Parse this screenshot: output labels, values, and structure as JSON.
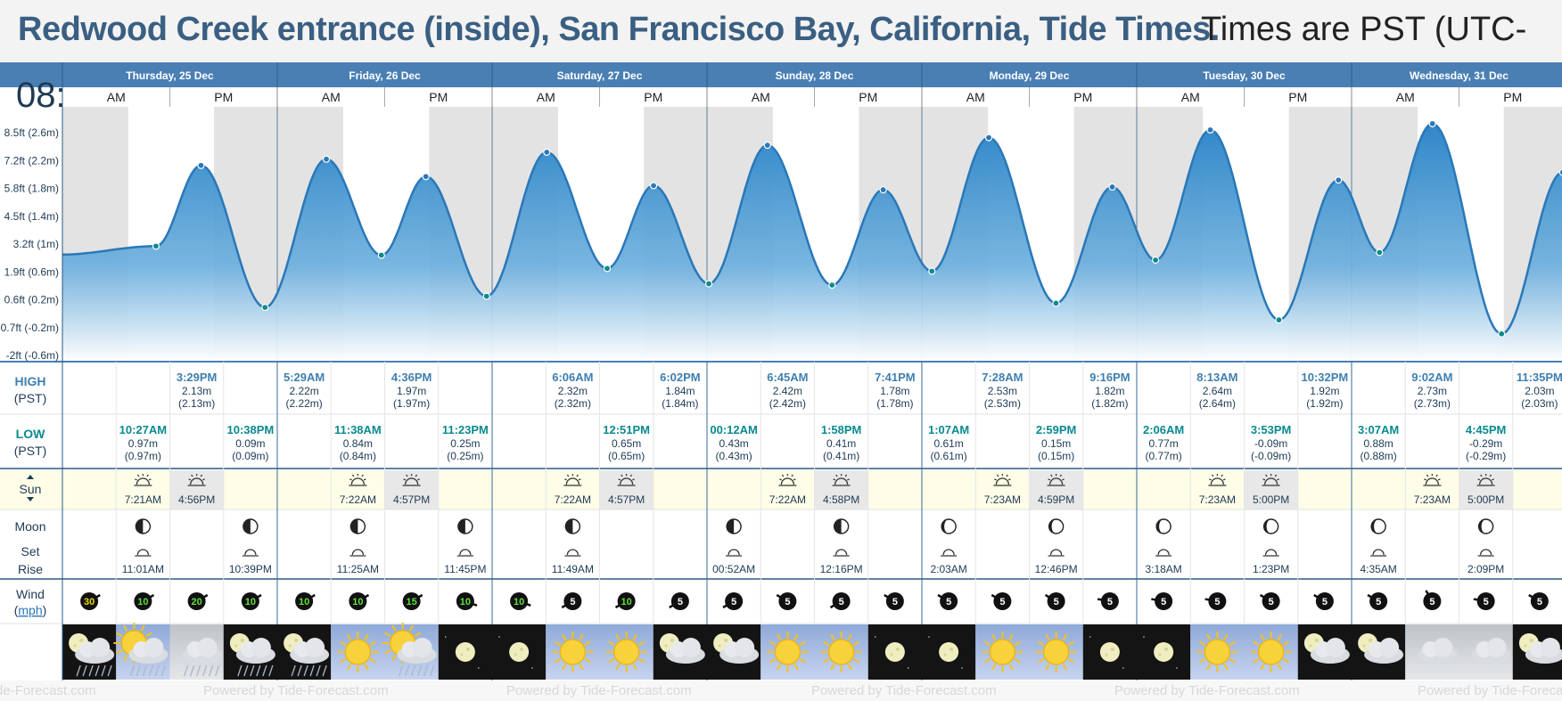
{
  "title": {
    "location": "Redwood Creek entrance (inside), San Francisco Bay, California, Tide Times.",
    "timezone_note": "Times are PST (UTC-"
  },
  "row_labels": {
    "high": "HIGH",
    "high_tz": "(PST)",
    "low": "LOW",
    "low_tz": "(PST)",
    "sun": "Sun",
    "moon": "Moon",
    "moon_set": "Set",
    "moon_rise": "Rise",
    "wind": "Wind",
    "wind_unit": "mph",
    "corner_overflow": "08:",
    "am": "AM",
    "pm": "PM"
  },
  "watermark": "Powered by Tide-Forecast.com",
  "colors": {
    "header_bar": "#4a7fb4",
    "title_text": "#3a5f82",
    "tide_fill": "#2f86c8",
    "label_text": "#1e3a54",
    "high_label": "#3f7fb0",
    "low_label": "#0a8a8f",
    "night_band": "#e3e3e3",
    "sun_row_bg": "#fdfde8"
  },
  "chart_data": {
    "type": "area",
    "title": "Redwood Creek entrance (inside), San Francisco Bay, California, Tide Times.",
    "x_unit": "hours since Thursday 25 Dec 00:00 PST",
    "y_unit": "m",
    "ylim": [
      -0.6,
      2.9
    ],
    "y_ticks": [
      {
        "m": 2.6,
        "label": "8.5ft (2.6m)"
      },
      {
        "m": 2.2,
        "label": "7.2ft (2.2m)"
      },
      {
        "m": 1.8,
        "label": "5.8ft (1.8m)"
      },
      {
        "m": 1.4,
        "label": "4.5ft (1.4m)"
      },
      {
        "m": 1.0,
        "label": "3.2ft (1m)"
      },
      {
        "m": 0.6,
        "label": "1.9ft (0.6m)"
      },
      {
        "m": 0.2,
        "label": "0.6ft (0.2m)"
      },
      {
        "m": -0.2,
        "label": "-0.7ft (-0.2m)"
      },
      {
        "m": -0.6,
        "label": "-2ft (-0.6m)"
      }
    ],
    "days": [
      {
        "label": "Thursday, 25 Dec",
        "high": [
          {
            "time": "3:29PM",
            "m": "2.13m",
            "paren": "(2.13m)"
          }
        ],
        "low": [
          {
            "time": "10:27AM",
            "m": "0.97m",
            "paren": "(0.97m)"
          },
          {
            "time": "10:38PM",
            "m": "0.09m",
            "paren": "(0.09m)"
          }
        ],
        "sunrise": "7:21AM",
        "sunset": "4:56PM",
        "moonrise": "11:01AM",
        "moonset": "10:39PM",
        "wind": [
          30,
          10,
          20,
          10
        ]
      },
      {
        "label": "Friday, 26 Dec",
        "high": [
          {
            "time": "5:29AM",
            "m": "2.22m",
            "paren": "(2.22m)"
          },
          {
            "time": "4:36PM",
            "m": "1.97m",
            "paren": "(1.97m)"
          }
        ],
        "low": [
          {
            "time": "11:38AM",
            "m": "0.84m",
            "paren": "(0.84m)"
          },
          {
            "time": "11:23PM",
            "m": "0.25m",
            "paren": "(0.25m)"
          }
        ],
        "sunrise": "7:22AM",
        "sunset": "4:57PM",
        "moonrise": "11:25AM",
        "moonset": "11:45PM",
        "wind": [
          10,
          10,
          15,
          10
        ]
      },
      {
        "label": "Saturday, 27 Dec",
        "high": [
          {
            "time": "6:06AM",
            "m": "2.32m",
            "paren": "(2.32m)"
          },
          {
            "time": "6:02PM",
            "m": "1.84m",
            "paren": "(1.84m)"
          }
        ],
        "low": [
          {
            "time": "12:51PM",
            "m": "0.65m",
            "paren": "(0.65m)"
          }
        ],
        "sunrise": "7:22AM",
        "sunset": "4:57PM",
        "moonrise": "11:49AM",
        "moonset": "",
        "wind": [
          10,
          5,
          10,
          5
        ]
      },
      {
        "label": "Sunday, 28 Dec",
        "high": [
          {
            "time": "6:45AM",
            "m": "2.42m",
            "paren": "(2.42m)"
          },
          {
            "time": "7:41PM",
            "m": "1.78m",
            "paren": "(1.78m)"
          }
        ],
        "low": [
          {
            "time": "00:12AM",
            "m": "0.43m",
            "paren": "(0.43m)"
          },
          {
            "time": "1:58PM",
            "m": "0.41m",
            "paren": "(0.41m)"
          }
        ],
        "sunrise": "7:22AM",
        "sunset": "4:58PM",
        "moonrise": "12:16PM",
        "moonset": "00:52AM",
        "wind": [
          5,
          5,
          5,
          5
        ]
      },
      {
        "label": "Monday, 29 Dec",
        "high": [
          {
            "time": "7:28AM",
            "m": "2.53m",
            "paren": "(2.53m)"
          },
          {
            "time": "9:16PM",
            "m": "1.82m",
            "paren": "(1.82m)"
          }
        ],
        "low": [
          {
            "time": "1:07AM",
            "m": "0.61m",
            "paren": "(0.61m)"
          },
          {
            "time": "2:59PM",
            "m": "0.15m",
            "paren": "(0.15m)"
          }
        ],
        "sunrise": "7:23AM",
        "sunset": "4:59PM",
        "moonrise": "12:46PM",
        "moonset": "2:03AM",
        "wind": [
          5,
          5,
          5,
          5
        ]
      },
      {
        "label": "Tuesday, 30 Dec",
        "high": [
          {
            "time": "8:13AM",
            "m": "2.64m",
            "paren": "(2.64m)"
          },
          {
            "time": "10:32PM",
            "m": "1.92m",
            "paren": "(1.92m)"
          }
        ],
        "low": [
          {
            "time": "2:06AM",
            "m": "0.77m",
            "paren": "(0.77m)"
          },
          {
            "time": "3:53PM",
            "m": "-0.09m",
            "paren": "(-0.09m)"
          }
        ],
        "sunrise": "7:23AM",
        "sunset": "5:00PM",
        "moonrise": "1:23PM",
        "moonset": "3:18AM",
        "wind": [
          5,
          5,
          5,
          5
        ]
      },
      {
        "label": "Wednesday, 31 Dec",
        "high": [
          {
            "time": "9:02AM",
            "m": "2.73m",
            "paren": "(2.73m)"
          },
          {
            "time": "11:35PM",
            "m": "2.03m",
            "paren": "(2.03m)"
          }
        ],
        "low": [
          {
            "time": "3:07AM",
            "m": "0.88m",
            "paren": "(0.88m)"
          },
          {
            "time": "4:45PM",
            "m": "-0.29m",
            "paren": "(-0.29m)"
          }
        ],
        "sunrise": "7:23AM",
        "sunset": "5:00PM",
        "moonrise": "2:09PM",
        "moonset": "4:35AM",
        "wind": [
          5,
          5,
          5,
          5
        ]
      }
    ],
    "series": [
      {
        "name": "tide",
        "points": [
          {
            "t": 0.0,
            "m": 0.85
          },
          {
            "t": 10.45,
            "m": 0.97
          },
          {
            "t": 15.48,
            "m": 2.13
          },
          {
            "t": 22.63,
            "m": 0.09
          },
          {
            "t": 29.48,
            "m": 2.22
          },
          {
            "t": 35.63,
            "m": 0.84
          },
          {
            "t": 40.6,
            "m": 1.97
          },
          {
            "t": 47.38,
            "m": 0.25
          },
          {
            "t": 54.1,
            "m": 2.32
          },
          {
            "t": 60.85,
            "m": 0.65
          },
          {
            "t": 66.03,
            "m": 1.84
          },
          {
            "t": 72.2,
            "m": 0.43
          },
          {
            "t": 78.75,
            "m": 2.42
          },
          {
            "t": 85.97,
            "m": 0.41
          },
          {
            "t": 91.68,
            "m": 1.78
          },
          {
            "t": 97.12,
            "m": 0.61
          },
          {
            "t": 103.47,
            "m": 2.53
          },
          {
            "t": 110.98,
            "m": 0.15
          },
          {
            "t": 117.27,
            "m": 1.82
          },
          {
            "t": 122.1,
            "m": 0.77
          },
          {
            "t": 128.22,
            "m": 2.64
          },
          {
            "t": 135.88,
            "m": -0.09
          },
          {
            "t": 142.53,
            "m": 1.92
          },
          {
            "t": 147.12,
            "m": 0.88
          },
          {
            "t": 153.03,
            "m": 2.73
          },
          {
            "t": 160.75,
            "m": -0.29
          },
          {
            "t": 167.58,
            "m": 2.03
          }
        ]
      }
    ]
  },
  "weather_slots": [
    "moon-rain",
    "sun-rain",
    "rain",
    "moon-rain",
    "moon-rain",
    "sun",
    "sun-rain",
    "moon",
    "moon",
    "sun",
    "sun",
    "moon-cloud",
    "moon-cloud",
    "sun",
    "sun",
    "moon",
    "moon",
    "sun",
    "sun",
    "moon",
    "moon",
    "sun",
    "sun",
    "moon-cloud",
    "moon-cloud",
    "cloud",
    "cloud",
    "moon-cloud"
  ],
  "moon_phase_icons": [
    "half-moon-icon",
    "half-moon-icon",
    "half-moon-icon",
    "half-moon-icon",
    "crescent-moon-icon",
    "crescent-moon-icon",
    "crescent-moon-icon"
  ]
}
